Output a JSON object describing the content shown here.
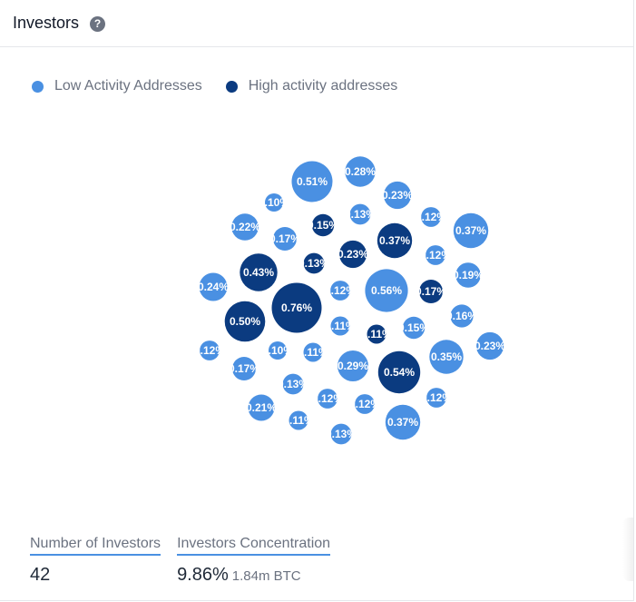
{
  "header": {
    "title": "Investors",
    "help_icon": "question-circle-icon"
  },
  "legend": [
    {
      "label": "Low Activity Addresses",
      "color": "#4a90e2"
    },
    {
      "label": "High activity addresses",
      "color": "#0b3b80"
    }
  ],
  "chart_data": {
    "type": "bubble",
    "series": [
      {
        "name": "Low Activity Addresses",
        "color": "#4a90e2"
      },
      {
        "name": "High activity addresses",
        "color": "#0b3b80"
      }
    ],
    "bubbles": [
      {
        "label": "0.51%",
        "value": 0.51,
        "series": 0
      },
      {
        "label": "0.28%",
        "value": 0.28,
        "series": 0
      },
      {
        "label": "0.10%",
        "value": 0.1,
        "series": 0
      },
      {
        "label": "0.23%",
        "value": 0.23,
        "series": 0
      },
      {
        "label": "0.22%",
        "value": 0.22,
        "series": 0
      },
      {
        "label": "0.15%",
        "value": 0.15,
        "series": 1
      },
      {
        "label": "0.13%",
        "value": 0.13,
        "series": 0
      },
      {
        "label": "0.12%",
        "value": 0.12,
        "series": 0
      },
      {
        "label": "0.37%",
        "value": 0.37,
        "series": 0
      },
      {
        "label": "0.17%",
        "value": 0.17,
        "series": 0
      },
      {
        "label": "0.37%",
        "value": 0.37,
        "series": 1
      },
      {
        "label": "0.23%",
        "value": 0.23,
        "series": 1
      },
      {
        "label": "0.12%",
        "value": 0.12,
        "series": 0
      },
      {
        "label": "0.43%",
        "value": 0.43,
        "series": 1
      },
      {
        "label": "0.13%",
        "value": 0.13,
        "series": 1
      },
      {
        "label": "0.19%",
        "value": 0.19,
        "series": 0
      },
      {
        "label": "0.24%",
        "value": 0.24,
        "series": 0
      },
      {
        "label": "0.12%",
        "value": 0.12,
        "series": 0
      },
      {
        "label": "0.56%",
        "value": 0.56,
        "series": 0
      },
      {
        "label": "0.17%",
        "value": 0.17,
        "series": 1
      },
      {
        "label": "0.76%",
        "value": 0.76,
        "series": 1
      },
      {
        "label": "0.50%",
        "value": 0.5,
        "series": 1
      },
      {
        "label": "0.16%",
        "value": 0.16,
        "series": 0
      },
      {
        "label": "0.11%",
        "value": 0.11,
        "series": 0
      },
      {
        "label": "0.11%",
        "value": 0.11,
        "series": 1
      },
      {
        "label": "0.15%",
        "value": 0.15,
        "series": 0
      },
      {
        "label": "0.23%",
        "value": 0.23,
        "series": 0
      },
      {
        "label": "0.12%",
        "value": 0.12,
        "series": 0
      },
      {
        "label": "0.10%",
        "value": 0.1,
        "series": 0
      },
      {
        "label": "0.11%",
        "value": 0.11,
        "series": 0
      },
      {
        "label": "0.35%",
        "value": 0.35,
        "series": 0
      },
      {
        "label": "0.17%",
        "value": 0.17,
        "series": 0
      },
      {
        "label": "0.29%",
        "value": 0.29,
        "series": 0
      },
      {
        "label": "0.54%",
        "value": 0.54,
        "series": 1
      },
      {
        "label": "0.13%",
        "value": 0.13,
        "series": 0
      },
      {
        "label": "0.12%",
        "value": 0.12,
        "series": 0
      },
      {
        "label": "0.12%",
        "value": 0.12,
        "series": 0
      },
      {
        "label": "0.12%",
        "value": 0.12,
        "series": 0
      },
      {
        "label": "0.21%",
        "value": 0.21,
        "series": 0
      },
      {
        "label": "0.11%",
        "value": 0.11,
        "series": 0
      },
      {
        "label": "0.37%",
        "value": 0.37,
        "series": 0
      },
      {
        "label": "0.13%",
        "value": 0.13,
        "series": 0
      }
    ]
  },
  "stats": {
    "investors_label": "Number of Investors",
    "investors_value": "42",
    "concentration_label": "Investors Concentration",
    "concentration_value": "9.86%",
    "concentration_sub": "1.84m BTC"
  }
}
